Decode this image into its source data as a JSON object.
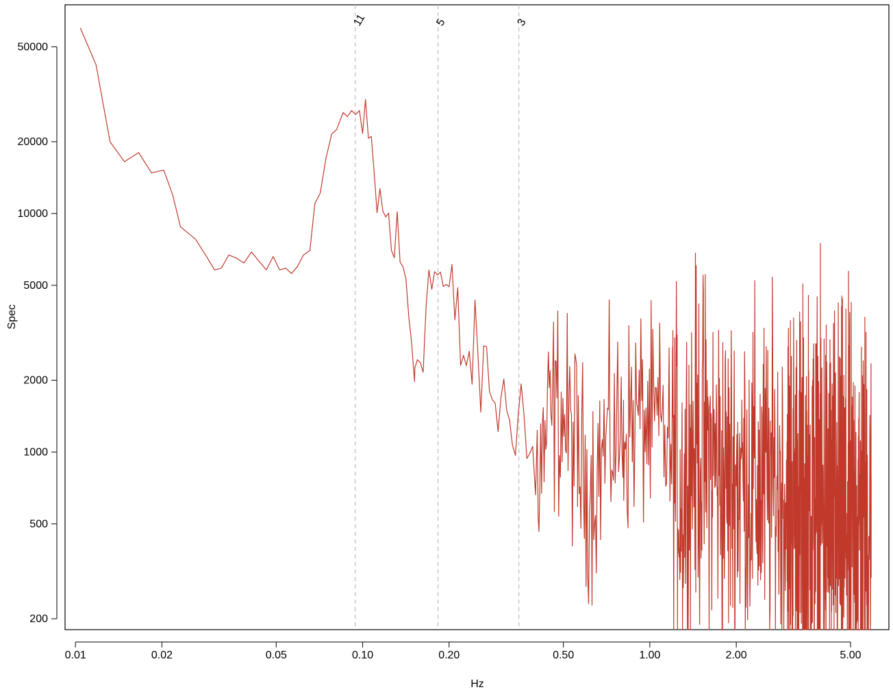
{
  "chart_data": {
    "type": "line",
    "xlabel": "Hz",
    "ylabel": "Spec",
    "x_scale": "log",
    "y_scale": "log",
    "xlim": [
      0.0092,
      6.8
    ],
    "ylim": [
      180,
      75000
    ],
    "x_ticks": [
      {
        "value": 0.01,
        "label": "0.01"
      },
      {
        "value": 0.02,
        "label": "0.02"
      },
      {
        "value": 0.05,
        "label": "0.05"
      },
      {
        "value": 0.1,
        "label": "0.10"
      },
      {
        "value": 0.2,
        "label": "0.20"
      },
      {
        "value": 0.5,
        "label": "0.50"
      },
      {
        "value": 1.0,
        "label": "1.00"
      },
      {
        "value": 2.0,
        "label": "2.00"
      },
      {
        "value": 5.0,
        "label": "5.00"
      }
    ],
    "y_ticks": [
      {
        "value": 200,
        "label": "200"
      },
      {
        "value": 500,
        "label": "500"
      },
      {
        "value": 1000,
        "label": "1000"
      },
      {
        "value": 2000,
        "label": "2000"
      },
      {
        "value": 5000,
        "label": "5000"
      },
      {
        "value": 10000,
        "label": "10000"
      },
      {
        "value": 20000,
        "label": "20000"
      },
      {
        "value": 50000,
        "label": "50000"
      }
    ],
    "reference_lines": [
      {
        "x": 0.0942,
        "label": "11"
      },
      {
        "x": 0.183,
        "label": "5"
      },
      {
        "x": 0.35,
        "label": "3"
      }
    ],
    "series": [
      {
        "color": "#c0392b",
        "anchors": [
          [
            0.0104,
            60000
          ],
          [
            0.0118,
            42000
          ],
          [
            0.0132,
            20000
          ],
          [
            0.0148,
            16500
          ],
          [
            0.0166,
            18000
          ],
          [
            0.0184,
            14800
          ],
          [
            0.0203,
            15200
          ],
          [
            0.0218,
            12000
          ],
          [
            0.0232,
            8800
          ],
          [
            0.0262,
            7800
          ],
          [
            0.0286,
            6600
          ],
          [
            0.0305,
            5800
          ],
          [
            0.0322,
            5900
          ],
          [
            0.0342,
            6700
          ],
          [
            0.0364,
            6500
          ],
          [
            0.0386,
            6200
          ],
          [
            0.041,
            6900
          ],
          [
            0.0436,
            6300
          ],
          [
            0.0462,
            5800
          ],
          [
            0.0488,
            6600
          ],
          [
            0.0514,
            5800
          ],
          [
            0.054,
            5900
          ],
          [
            0.0565,
            5600
          ],
          [
            0.0593,
            6000
          ],
          [
            0.0622,
            6700
          ],
          [
            0.0655,
            7000
          ],
          [
            0.0682,
            11000
          ],
          [
            0.0712,
            12200
          ],
          [
            0.0745,
            17000
          ],
          [
            0.078,
            21500
          ],
          [
            0.0812,
            22500
          ],
          [
            0.0855,
            26500
          ],
          [
            0.0885,
            25500
          ],
          [
            0.0915,
            27000
          ],
          [
            0.0945,
            26000
          ],
          [
            0.0975,
            27000
          ],
          [
            0.1005,
            19500
          ],
          [
            0.104,
            18200
          ],
          [
            0.108,
            16500
          ],
          [
            0.112,
            11800
          ],
          [
            0.116,
            10200
          ],
          [
            0.121,
            9200
          ],
          [
            0.126,
            8500
          ],
          [
            0.131,
            7200
          ],
          [
            0.1365,
            5800
          ],
          [
            0.142,
            4800
          ],
          [
            0.147,
            3400
          ],
          [
            0.152,
            2250
          ],
          [
            0.157,
            2800
          ],
          [
            0.163,
            3700
          ],
          [
            0.169,
            4600
          ],
          [
            0.175,
            5400
          ],
          [
            0.181,
            5900
          ],
          [
            0.186,
            5200
          ],
          [
            0.192,
            4800
          ],
          [
            0.199,
            4300
          ],
          [
            0.206,
            3900
          ],
          [
            0.214,
            3500
          ],
          [
            0.222,
            2600
          ],
          [
            0.231,
            2400
          ],
          [
            0.24,
            2500
          ],
          [
            0.25,
            2250
          ],
          [
            0.261,
            2150
          ],
          [
            0.272,
            2000
          ],
          [
            0.284,
            1800
          ],
          [
            0.296,
            1650
          ],
          [
            0.31,
            1500
          ],
          [
            0.324,
            1350
          ],
          [
            0.338,
            1500
          ],
          [
            0.35,
            1950
          ],
          [
            0.362,
            1450
          ],
          [
            0.375,
            1000
          ],
          [
            0.39,
            900
          ],
          [
            0.405,
            780
          ],
          [
            0.42,
            900
          ],
          [
            0.44,
            1200
          ],
          [
            0.46,
            1450
          ],
          [
            0.48,
            1550
          ],
          [
            0.5,
            1350
          ],
          [
            0.53,
            1200
          ],
          [
            0.56,
            1000
          ],
          [
            0.59,
            780
          ],
          [
            0.62,
            700
          ],
          [
            0.66,
            850
          ],
          [
            0.7,
            1050
          ],
          [
            0.75,
            1200
          ],
          [
            0.8,
            1150
          ],
          [
            0.86,
            1350
          ],
          [
            0.92,
            1450
          ],
          [
            0.98,
            1300
          ],
          [
            1.05,
            1250
          ],
          [
            1.12,
            1200
          ],
          [
            1.2,
            900
          ],
          [
            1.3,
            650
          ],
          [
            1.4,
            1000
          ],
          [
            1.5,
            1050
          ],
          [
            1.6,
            950
          ],
          [
            1.7,
            900
          ],
          [
            1.85,
            720
          ],
          [
            2.0,
            800
          ],
          [
            2.2,
            780
          ],
          [
            2.4,
            720
          ],
          [
            2.6,
            700
          ],
          [
            2.8,
            720
          ],
          [
            3.0,
            680
          ],
          [
            3.3,
            600
          ],
          [
            3.6,
            560
          ],
          [
            3.9,
            620
          ],
          [
            4.2,
            560
          ],
          [
            4.6,
            520
          ],
          [
            5.0,
            500
          ],
          [
            5.5,
            520
          ],
          [
            5.9,
            500
          ]
        ],
        "noise_segments": [
          {
            "x_from": 0.1,
            "x_to": 0.4,
            "n": 60,
            "amp": 0.12
          },
          {
            "x_from": 0.4,
            "x_to": 1.2,
            "n": 160,
            "amp": 0.22
          },
          {
            "x_from": 1.2,
            "x_to": 3.0,
            "n": 300,
            "amp": 0.36
          },
          {
            "x_from": 3.0,
            "x_to": 5.9,
            "n": 520,
            "amp": 0.42
          }
        ],
        "min_points": [
          [
            0.152,
            2250
          ],
          [
            0.56,
            590
          ],
          [
            1.25,
            480
          ],
          [
            1.78,
            380
          ],
          [
            2.28,
            390
          ],
          [
            3.08,
            410
          ],
          [
            3.78,
            262
          ],
          [
            4.25,
            320
          ],
          [
            4.74,
            237
          ],
          [
            5.25,
            228
          ],
          [
            5.9,
            298
          ]
        ],
        "max_points": [
          [
            0.81,
            1650
          ],
          [
            1.2,
            1400
          ],
          [
            1.6,
            1300
          ],
          [
            2.63,
            1350
          ],
          [
            3.75,
            1150
          ],
          [
            5.42,
            950
          ],
          [
            5.9,
            800
          ]
        ]
      }
    ]
  }
}
